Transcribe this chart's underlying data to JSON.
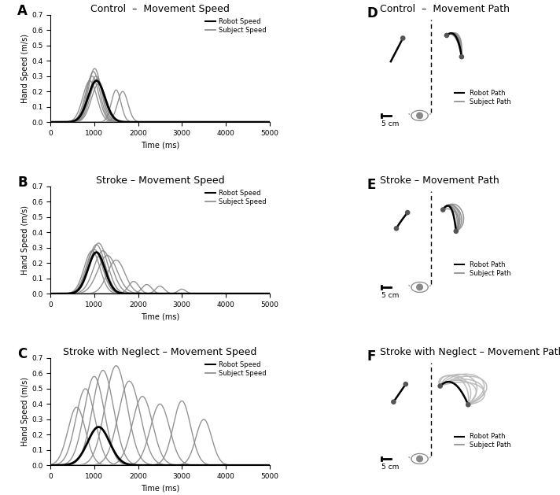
{
  "title_A": "Control  –  Movement Speed",
  "title_B": "Stroke – Movement Speed",
  "title_C": "Stroke with Neglect – Movement Speed",
  "title_D": "Control  –  Movement Path",
  "title_E": "Stroke – Movement Path",
  "title_F": "Stroke with Neglect – Movement Path",
  "xlabel": "Time (ms)",
  "ylabel": "Hand Speed (m/s)",
  "xlim": [
    0,
    5000
  ],
  "ylim": [
    0,
    0.7
  ],
  "yticks": [
    0.0,
    0.1,
    0.2,
    0.3,
    0.4,
    0.5,
    0.6,
    0.7
  ],
  "xticks": [
    0,
    1000,
    2000,
    3000,
    4000,
    5000
  ],
  "robot_color": "#000000",
  "subject_color": "#888888",
  "label_fontsize": 8,
  "title_fontsize": 9,
  "panel_label_fontsize": 12,
  "scale_bar_label": "5 cm",
  "legend_robot": "Robot Speed",
  "legend_subject": "Subject Speed",
  "legend_robot_path": "Robot Path",
  "legend_subject_path": "Subject Path"
}
